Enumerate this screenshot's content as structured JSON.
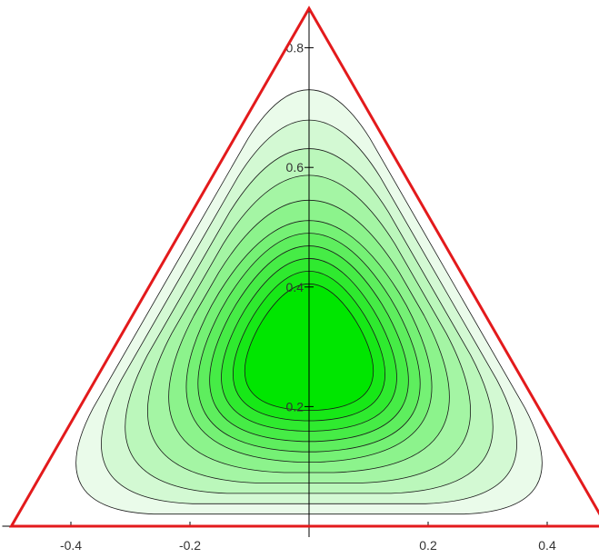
{
  "chart_data": {
    "type": "contour",
    "title": "",
    "xlabel": "",
    "ylabel": "",
    "xlim": [
      -0.5,
      0.5
    ],
    "ylim": [
      0,
      0.866
    ],
    "x_ticks": [
      -0.4,
      -0.2,
      0.2,
      0.4
    ],
    "x_tick_labels": [
      "-0.4",
      "-0.2",
      "0.2",
      "0.4"
    ],
    "y_ticks": [
      0.2,
      0.4,
      0.6,
      0.8
    ],
    "y_tick_labels": [
      "0.2",
      "0.4",
      "0.6",
      "0.8"
    ],
    "grid": false,
    "boundary": {
      "shape": "equilateral triangle",
      "vertices": [
        [
          -0.5,
          0
        ],
        [
          0.5,
          0
        ],
        [
          0,
          0.866
        ]
      ],
      "color": "#e31a1c"
    },
    "contour_center": [
      0,
      0.289
    ],
    "contour_levels": 11,
    "fill_colors": {
      "outer": "#eafbea",
      "inner": "#00e600"
    },
    "line_color": "#1a1a1a"
  }
}
